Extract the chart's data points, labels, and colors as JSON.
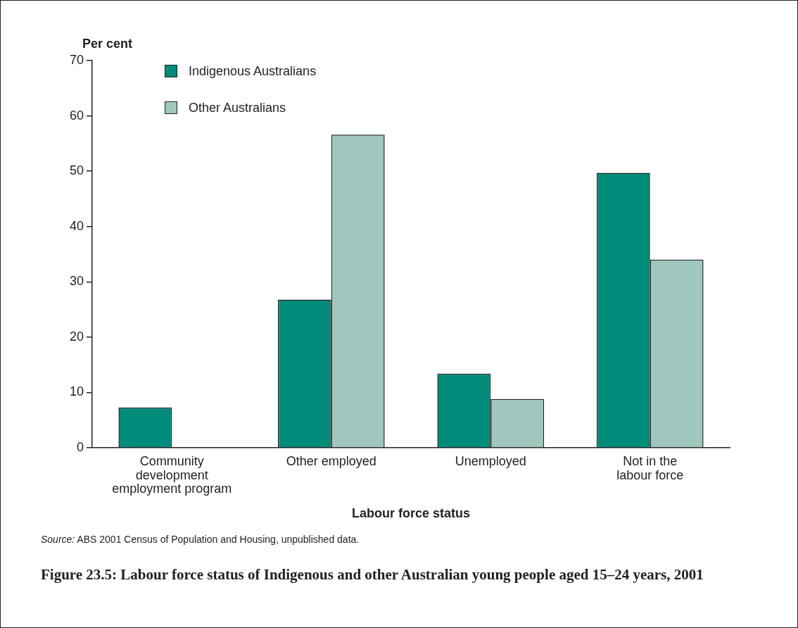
{
  "chart_data": {
    "type": "bar",
    "title": "Figure 23.5: Labour force status of Indigenous and other Australian young people aged 15–24 years, 2001",
    "xlabel": "Labour force status",
    "ylabel": "Per cent",
    "categories": [
      "Community\ndevelopment\nemployment program",
      "Other employed",
      "Unemployed",
      "Not in the\nlabour force"
    ],
    "series": [
      {
        "name": "Indigenous Australians",
        "color": "#008b7a",
        "values": [
          7.3,
          26.8,
          13.4,
          49.7
        ]
      },
      {
        "name": "Other Australians",
        "color": "#9fc7bd",
        "values": [
          0,
          56.6,
          8.8,
          34.0
        ]
      }
    ],
    "ylim": [
      0,
      70
    ],
    "yticks": [
      0,
      10,
      20,
      30,
      40,
      50,
      60,
      70
    ],
    "grid": false,
    "legend": "top left",
    "annotations": [
      "Source: ABS 2001 Census of Population and Housing, unpublished data."
    ]
  }
}
